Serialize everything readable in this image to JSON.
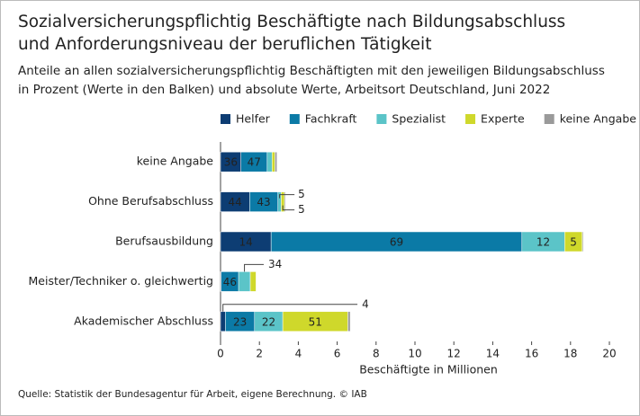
{
  "chart_data": {
    "type": "stacked-bar-horizontal",
    "title": [
      "Sozialversicherungspflichtig Beschäftigte nach Bildungsabschluss",
      "und Anforderungsniveau der beruflichen Tätigkeit"
    ],
    "subtitle": [
      "Anteile an allen sozialversicherungspflichtig Beschäftigten mit den jeweiligen Bildungsabschluss",
      "in Prozent (Werte in den Balken) und absolute Werte, Arbeitsort Deutschland, Juni 2022"
    ],
    "categories": [
      "keine Angabe",
      "Ohne Berufsabschluss",
      "Berufsausbildung",
      "Meister/Techniker o. gleichwertig",
      "Akademischer Abschluss"
    ],
    "series": [
      {
        "name": "Helfer",
        "color": "#0d3d73",
        "values": [
          1.05,
          1.5,
          2.6,
          0.03,
          0.25
        ],
        "shares": [
          36,
          44,
          14,
          null,
          4
        ]
      },
      {
        "name": "Fachkraft",
        "color": "#0b7aa6",
        "values": [
          1.35,
          1.45,
          12.9,
          0.9,
          1.5
        ],
        "shares": [
          47,
          43,
          69,
          46,
          23
        ]
      },
      {
        "name": "Spezialist",
        "color": "#5bc4c8",
        "values": [
          0.25,
          0.17,
          2.2,
          0.6,
          1.45
        ],
        "shares": [
          null,
          5,
          12,
          34,
          22
        ]
      },
      {
        "name": "Experte",
        "color": "#cfd82b",
        "values": [
          0.15,
          0.17,
          0.9,
          0.3,
          3.35
        ],
        "shares": [
          null,
          5,
          5,
          null,
          51
        ]
      },
      {
        "name": "keine Angabe",
        "color": "#9a9a9a",
        "values": [
          0.1,
          0.05,
          0.05,
          0.02,
          0.12
        ],
        "shares": [
          null,
          null,
          null,
          null,
          null
        ]
      }
    ],
    "xlabel": "Beschäftigte in Millionen",
    "xlim": [
      0,
      20
    ],
    "xticks": [
      0,
      2,
      4,
      6,
      8,
      10,
      12,
      14,
      16,
      18,
      20
    ],
    "source": "Quelle: Statistik der Bundesagentur für Arbeit, eigene Berechnung. © IAB"
  }
}
